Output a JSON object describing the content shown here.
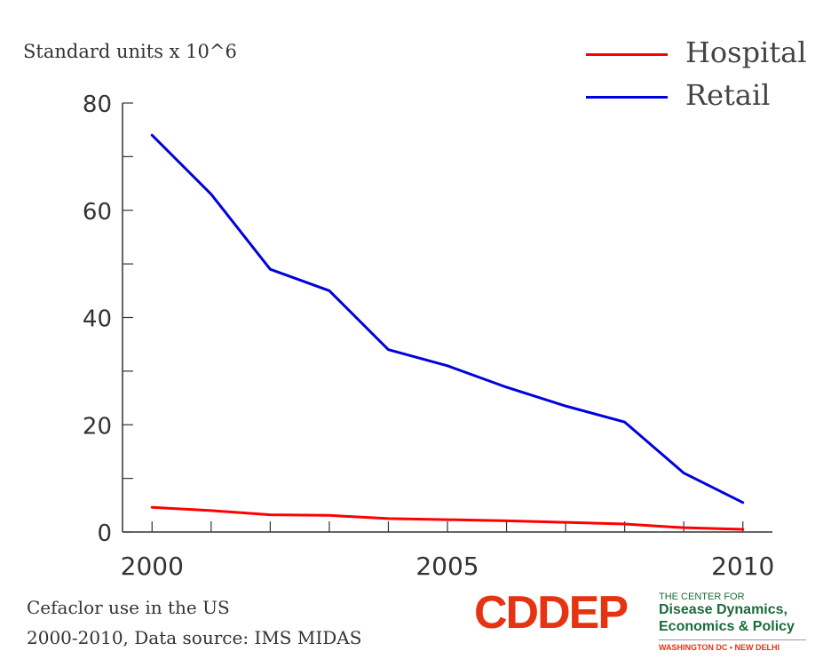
{
  "chart_data": {
    "type": "line",
    "ylabel": "Standard units x 10^6",
    "xlim": [
      1999.5,
      2010.5
    ],
    "ylim": [
      0,
      80
    ],
    "x_ticks": [
      2000,
      2005,
      2010
    ],
    "y_ticks": [
      0,
      20,
      40,
      60,
      80
    ],
    "grid": false,
    "legend_position": "top-right",
    "x": [
      2000,
      2001,
      2002,
      2003,
      2004,
      2005,
      2006,
      2007,
      2008,
      2009,
      2010
    ],
    "series": [
      {
        "name": "Hospital",
        "color": "#ff0000",
        "values": [
          4.6,
          4.0,
          3.2,
          3.1,
          2.5,
          2.3,
          2.1,
          1.8,
          1.5,
          0.8,
          0.5
        ]
      },
      {
        "name": "Retail",
        "color": "#0000dd",
        "values": [
          74,
          63,
          49,
          45,
          34,
          31,
          27,
          23.5,
          20.5,
          11,
          5.5
        ]
      }
    ]
  },
  "caption": {
    "line1": "Cefaclor use in the US",
    "line2": "2000-2010, Data source: IMS MIDAS"
  },
  "logo": {
    "mark": "CDDEP",
    "mark_color": "#e63312",
    "line1": "THE CENTER FOR",
    "line2": "Disease Dynamics,",
    "line3": "Economics & Policy",
    "line4": "WASHINGTON DC • NEW DELHI"
  }
}
